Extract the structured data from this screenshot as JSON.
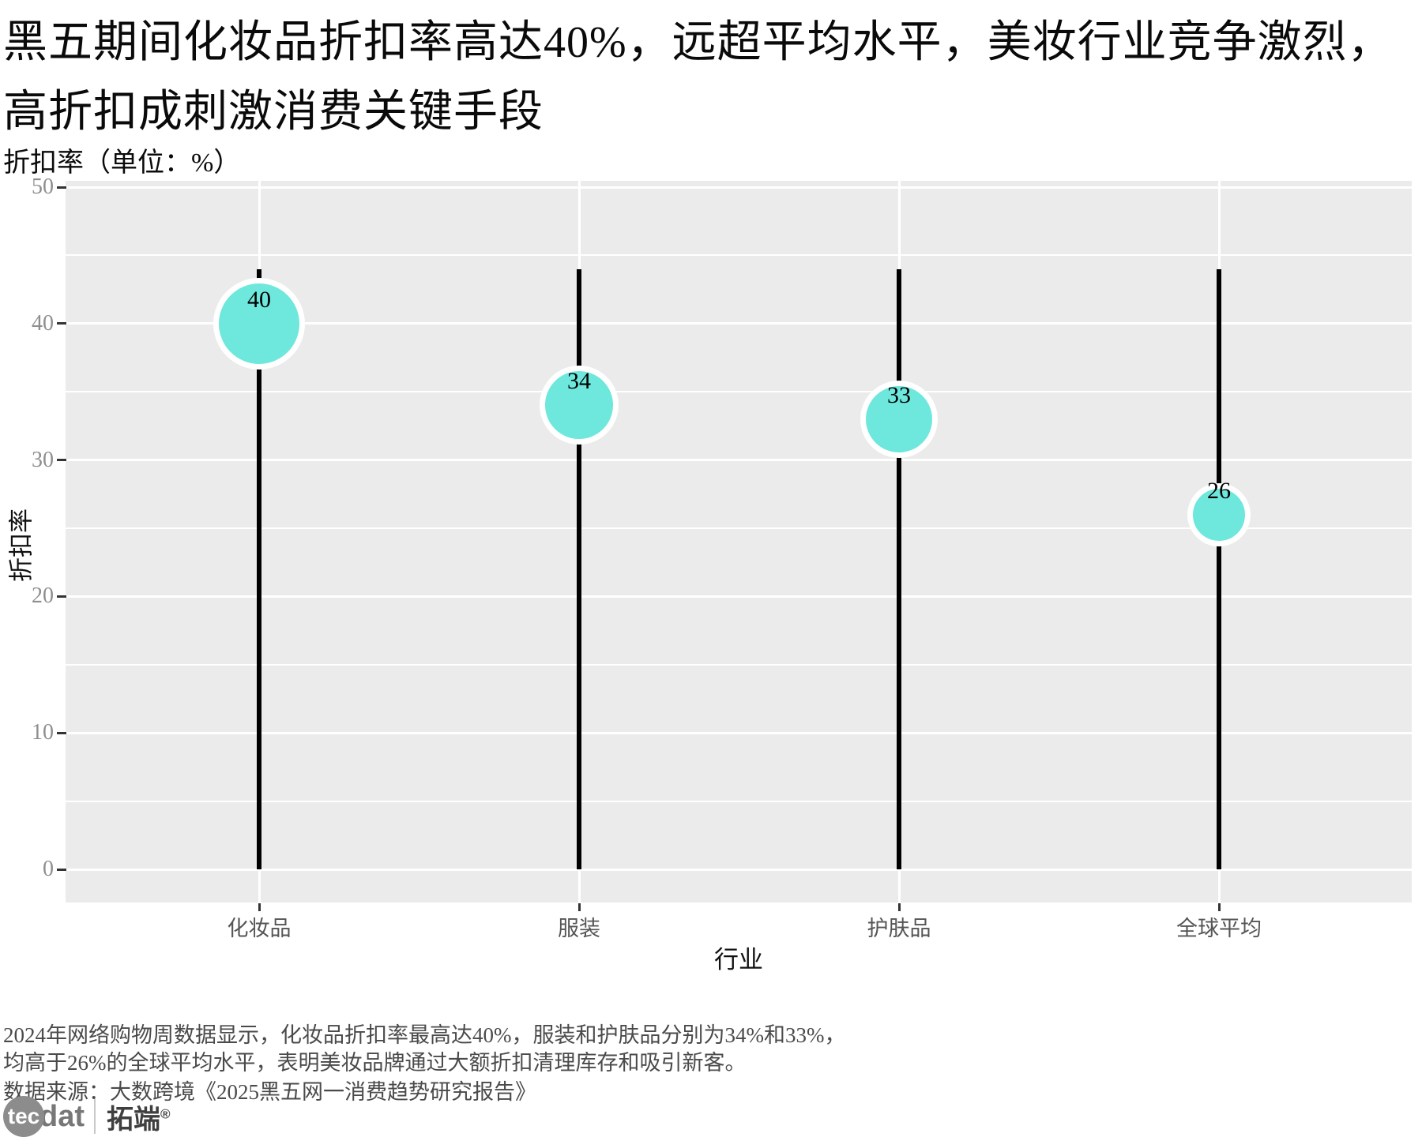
{
  "header": {
    "title_line1": "黑五期间化妆品折扣率高达40%，远超平均水平，美妆行业竞争激烈，",
    "title_line2": "高折扣成刺激消费关键手段",
    "subtitle": "折扣率（单位：%）"
  },
  "chart_data": {
    "type": "scatter",
    "style": "lollipop",
    "title": "黑五期间化妆品折扣率高达40%，远超平均水平，美妆行业竞争激烈，高折扣成刺激消费关键手段",
    "subtitle": "折扣率（单位：%）",
    "categories": [
      "化妆品",
      "服装",
      "护肤品",
      "全球平均"
    ],
    "values": [
      40,
      34,
      33,
      26
    ],
    "stem_top_value": 44,
    "xlabel": "行业",
    "ylabel": "折扣率",
    "ylim": [
      0,
      50
    ],
    "yticks_major": [
      0,
      10,
      20,
      30,
      40,
      50
    ],
    "yticks_minor": [
      5,
      15,
      25,
      35,
      45
    ],
    "grid": true,
    "legend": false,
    "colors": {
      "point_fill": "#6EE7DC",
      "point_border": "#FFFFFF",
      "stem": "#000000",
      "panel_bg": "#EBEBEB",
      "gridline": "#FFFFFF"
    }
  },
  "footer": {
    "note_line1": "2024年网络购物周数据显示，化妆品折扣率最高达40%，服装和护肤品分别为34%和33%，",
    "note_line2": "均高于26%的全球平均水平，表明美妆品牌通过大额折扣清理库存和吸引新客。",
    "source": "数据来源：大数跨境《2025黑五网一消费趋势研究报告》"
  },
  "logo": {
    "part1": "tec",
    "part2": "dat",
    "brand": "拓端",
    "reg_mark": "®"
  }
}
